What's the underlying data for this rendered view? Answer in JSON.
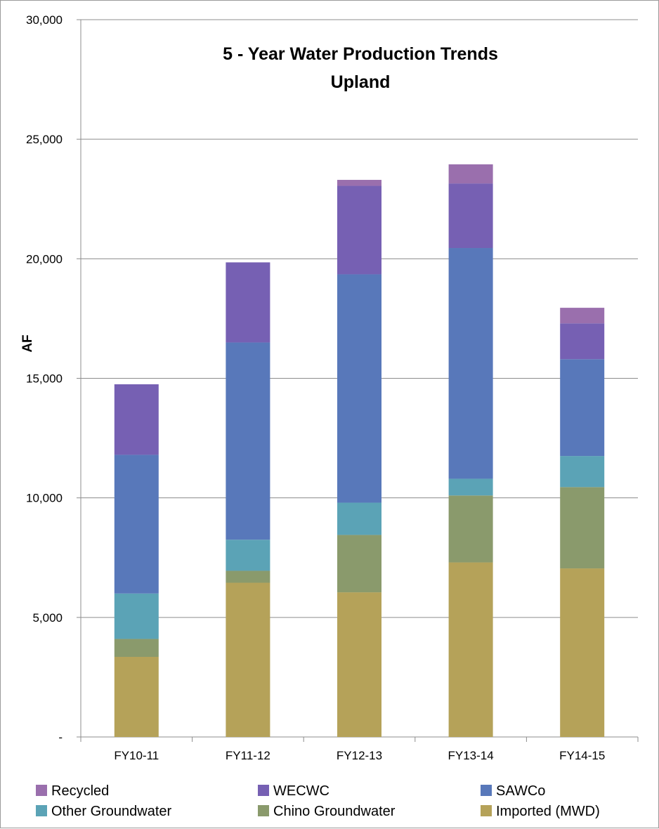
{
  "chart_data": {
    "type": "bar",
    "stacked": true,
    "title": "5 - Year Water Production Trends",
    "subtitle": "Upland",
    "xlabel": "",
    "ylabel": "AF",
    "ylim": [
      0,
      30000
    ],
    "yticks": [
      0,
      5000,
      10000,
      15000,
      20000,
      25000,
      30000
    ],
    "ytick_labels": [
      "-",
      "5,000",
      "10,000",
      "15,000",
      "20,000",
      "25,000",
      "30,000"
    ],
    "grid": true,
    "legend_position": "bottom",
    "categories": [
      "FY10-11",
      "FY11-12",
      "FY12-13",
      "FY13-14",
      "FY14-15"
    ],
    "series": [
      {
        "name": "Imported (MWD)",
        "color": "#b5a259",
        "values": [
          3350,
          6450,
          6050,
          7300,
          7050
        ]
      },
      {
        "name": "Chino Groundwater",
        "color": "#8a9a6c",
        "values": [
          750,
          500,
          2400,
          2800,
          3400
        ]
      },
      {
        "name": "Other Groundwater",
        "color": "#5ba3b6",
        "values": [
          1900,
          1300,
          1350,
          700,
          1300
        ]
      },
      {
        "name": "SAWCo",
        "color": "#5878ba",
        "values": [
          5800,
          8250,
          9550,
          9650,
          4050
        ]
      },
      {
        "name": "WECWC",
        "color": "#7660b3",
        "values": [
          2950,
          3350,
          3700,
          2700,
          1500
        ]
      },
      {
        "name": "Recycled",
        "color": "#9a6fad",
        "values": [
          0,
          0,
          250,
          800,
          650
        ]
      }
    ],
    "legend_order": [
      "Recycled",
      "WECWC",
      "SAWCo",
      "Other Groundwater",
      "Chino Groundwater",
      "Imported (MWD)"
    ]
  }
}
